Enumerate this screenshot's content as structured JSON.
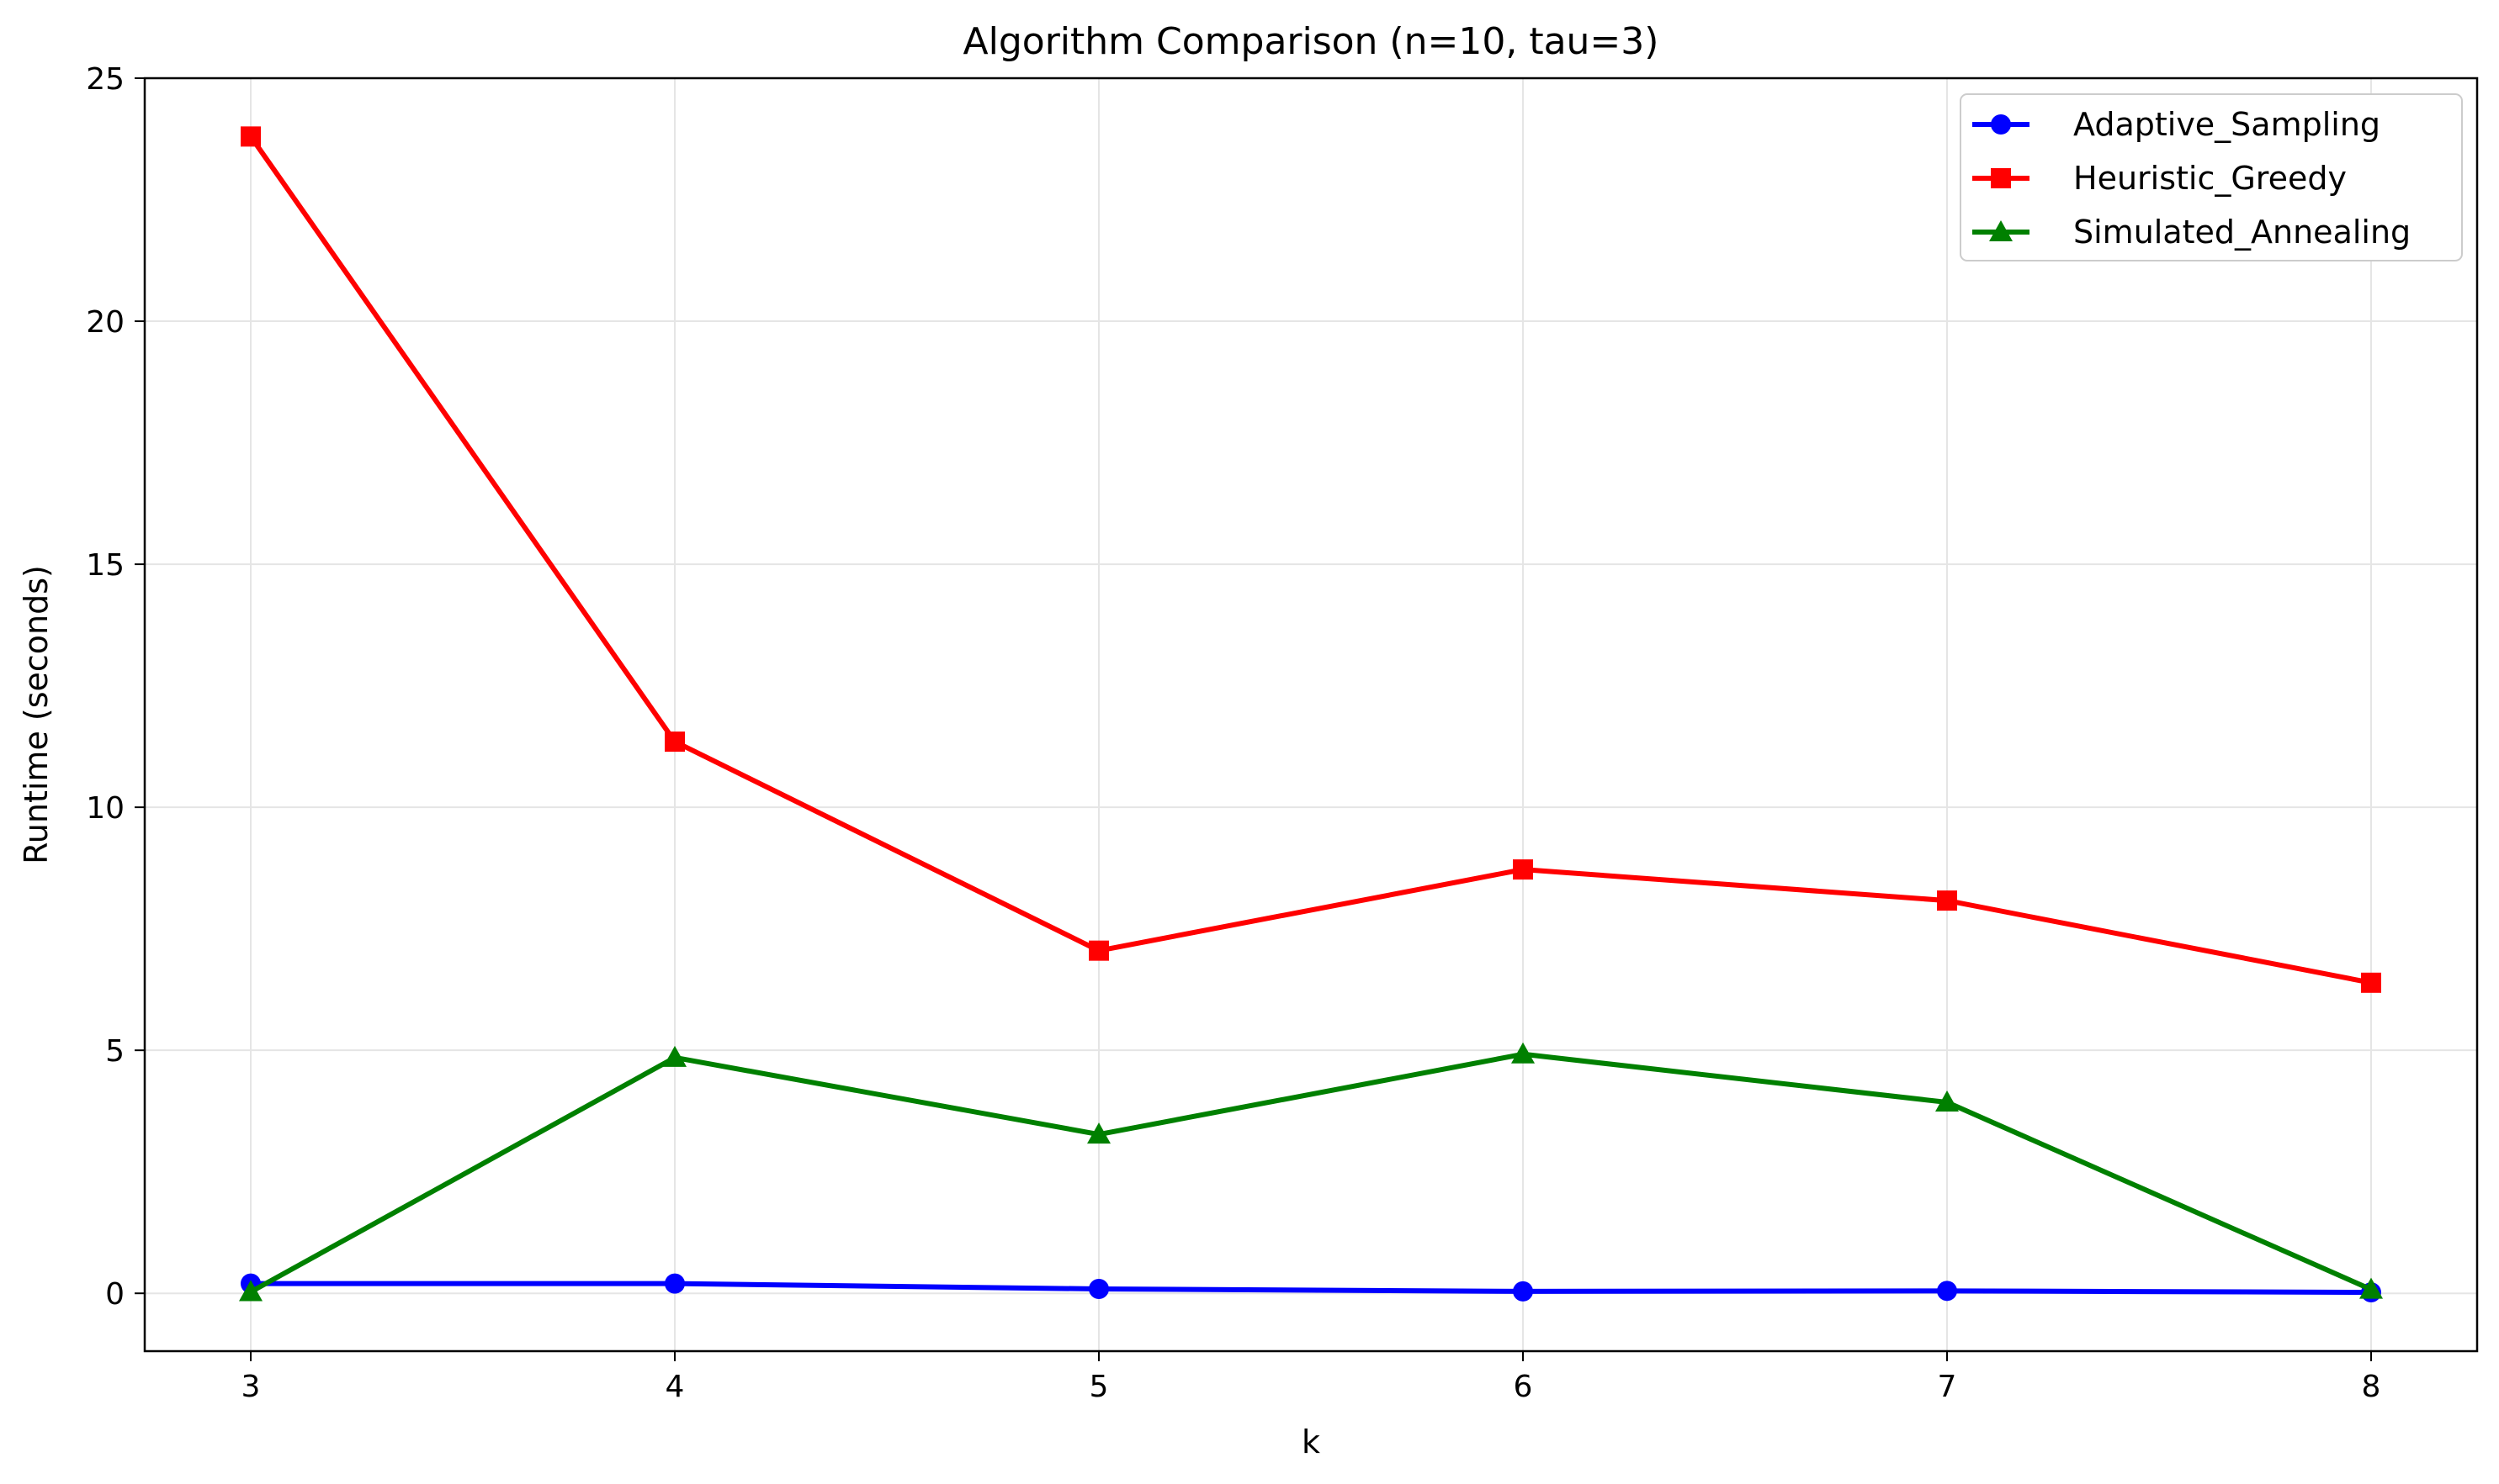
{
  "chart_data": {
    "type": "line",
    "title": "Algorithm Comparison (n=10, tau=3)",
    "xlabel": "k",
    "ylabel": "Runtime (seconds)",
    "x": [
      3,
      4,
      5,
      6,
      7,
      8
    ],
    "xlim": [
      2.75,
      8.25
    ],
    "ylim": [
      -1.19,
      25.0
    ],
    "xticks": [
      3,
      4,
      5,
      6,
      7,
      8
    ],
    "yticks": [
      0,
      5,
      10,
      15,
      20,
      25
    ],
    "grid": true,
    "legend_position": "top-right",
    "series": [
      {
        "name": "Adaptive_Sampling",
        "color": "#0000ff",
        "marker": "circle",
        "values": [
          0.2,
          0.2,
          0.09,
          0.04,
          0.05,
          0.02
        ]
      },
      {
        "name": "Heuristic_Greedy",
        "color": "#ff0000",
        "marker": "square",
        "values": [
          23.8,
          11.35,
          7.05,
          8.72,
          8.08,
          6.39
        ]
      },
      {
        "name": "Simulated_Annealing",
        "color": "#008000",
        "marker": "triangle",
        "values": [
          0.03,
          4.85,
          3.27,
          4.92,
          3.93,
          0.08
        ]
      }
    ]
  }
}
